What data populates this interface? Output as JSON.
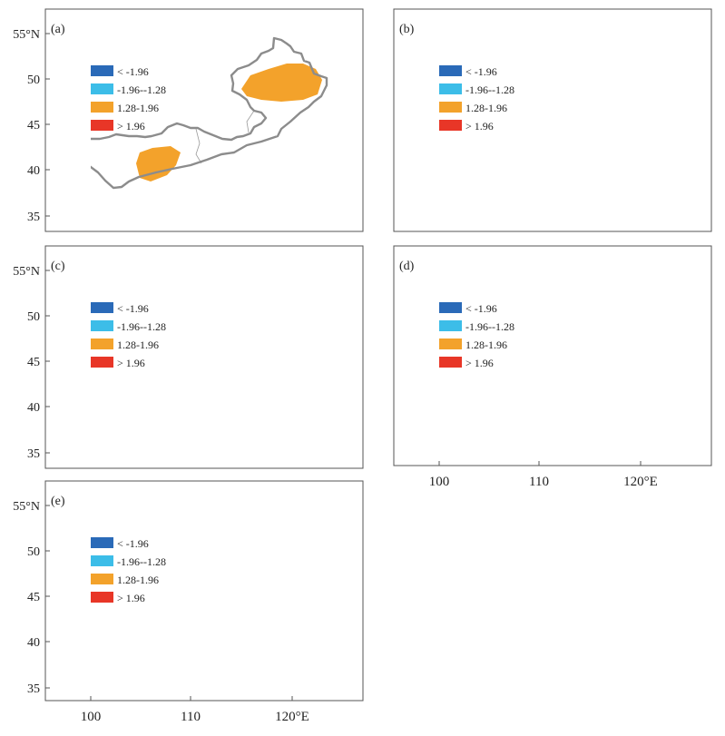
{
  "colors": {
    "strong_neg": "#2a6ab8",
    "neg": "#3cbde8",
    "pos": "#f3a22b",
    "strong_pos": "#e83627",
    "border": "#8c8c8c",
    "frame": "#555555"
  },
  "legend": [
    {
      "label": "< -1.96",
      "color_key": "strong_neg"
    },
    {
      "label": "-1.96--1.28",
      "color_key": "neg"
    },
    {
      "label": "1.28-1.96",
      "color_key": "pos"
    },
    {
      "label": "> 1.96",
      "color_key": "strong_pos"
    }
  ],
  "axes": {
    "y_ticks": [
      "55°N",
      "50",
      "45",
      "40",
      "35"
    ],
    "x_ticks": [
      "100",
      "110",
      "120°E"
    ]
  },
  "panels": [
    {
      "id": "a",
      "label": "(a)",
      "show_y": true,
      "show_x": false
    },
    {
      "id": "b",
      "label": "(b)",
      "show_y": false,
      "show_x": false
    },
    {
      "id": "c",
      "label": "(c)",
      "show_y": true,
      "show_x": false
    },
    {
      "id": "d",
      "label": "(d)",
      "show_y": false,
      "show_x": true
    },
    {
      "id": "e",
      "label": "(e)",
      "show_y": true,
      "show_x": true
    }
  ]
}
